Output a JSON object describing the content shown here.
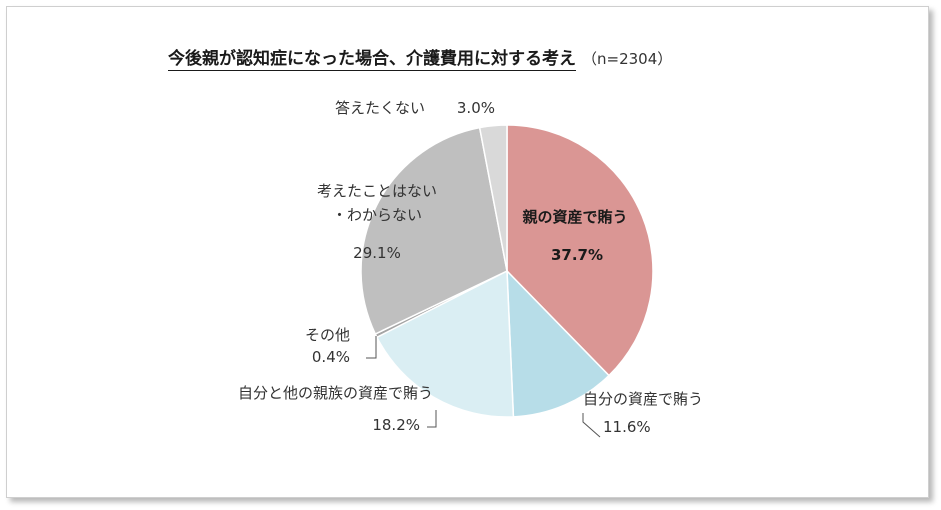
{
  "title": "今後親が認知症になった場合、介護費用に対する考え",
  "title_n": "（n=2304）",
  "chart_data": {
    "type": "pie",
    "start": "top",
    "direction": "clockwise",
    "slices": [
      {
        "label": "親の資産で賄う",
        "value_label": "37.7%",
        "value": 37.7,
        "color": "#da9694"
      },
      {
        "label": "自分の資産で賄う",
        "value_label": "11.6%",
        "value": 11.6,
        "color": "#b7dde8"
      },
      {
        "label": "自分と他の親族の資産で賄う",
        "value_label": "18.2%",
        "value": 18.2,
        "color": "#daeef3"
      },
      {
        "label": "その他",
        "value_label": "0.4%",
        "value": 0.4,
        "color": "#a5a5a5"
      },
      {
        "label": "考えたことはない\n・わからない",
        "value_label": "29.1%",
        "value": 29.1,
        "color": "#bfbfbf"
      },
      {
        "label": "答えたくない",
        "value_label": "3.0%",
        "value": 3.0,
        "color": "#d9d9d9"
      }
    ]
  }
}
